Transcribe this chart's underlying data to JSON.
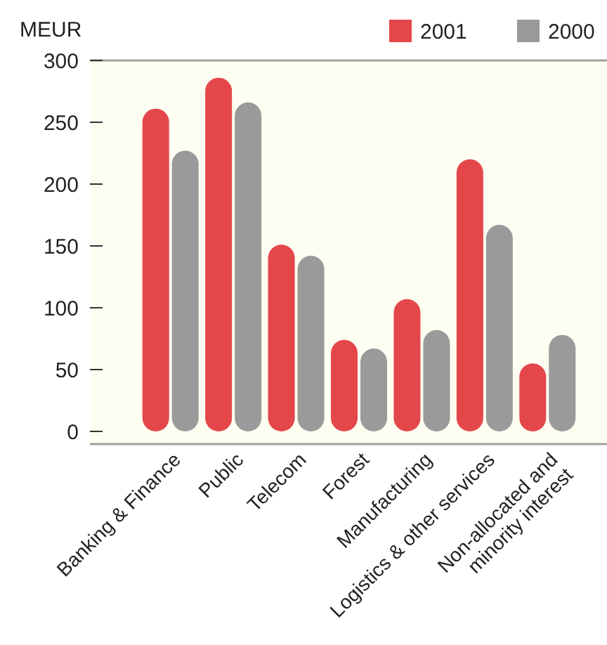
{
  "chart_data": {
    "type": "bar",
    "ylabel": "MEUR",
    "categories": [
      "Banking & Finance",
      "Public",
      "Telecom",
      "Forest",
      "Manufacturing",
      "Logistics & other services",
      "Non-allocated and\nminority interest"
    ],
    "series": [
      {
        "name": "2001",
        "color": "#e4474a",
        "values": [
          261,
          286,
          151,
          74,
          107,
          220,
          55
        ]
      },
      {
        "name": "2000",
        "color": "#9a9a9a",
        "values": [
          227,
          266,
          142,
          67,
          82,
          167,
          78
        ]
      }
    ],
    "ylim": [
      0,
      300
    ],
    "yticks": [
      0,
      50,
      100,
      150,
      200,
      250,
      300
    ],
    "legend": "top right",
    "grid": false
  }
}
